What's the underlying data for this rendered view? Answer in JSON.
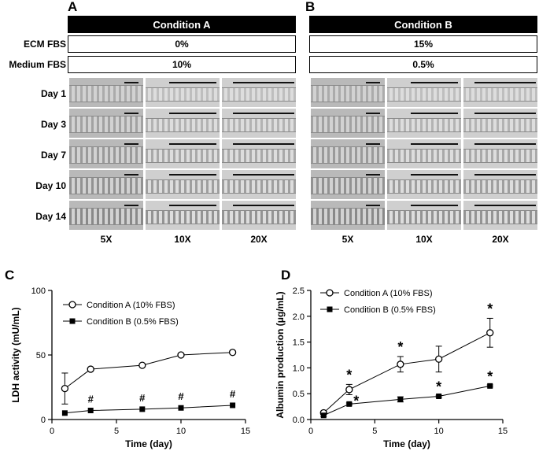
{
  "panels": {
    "A": "A",
    "B": "B",
    "C": "C",
    "D": "D"
  },
  "conditionA": {
    "title": "Condition A",
    "ecm_fbs": "0%",
    "medium_fbs": "10%"
  },
  "conditionB": {
    "title": "Condition B",
    "ecm_fbs": "15%",
    "medium_fbs": "0.5%"
  },
  "row_labels": {
    "ecm": "ECM FBS",
    "medium": "Medium FBS"
  },
  "days": [
    "Day 1",
    "Day 3",
    "Day 7",
    "Day 10",
    "Day 14"
  ],
  "magnifications": [
    "5X",
    "10X",
    "20X"
  ],
  "chart_data": [
    {
      "panel": "C",
      "type": "line",
      "xlabel": "Time (day)",
      "ylabel": "LDH activity (mU/mL)",
      "xlim": [
        0,
        15
      ],
      "ylim": [
        0,
        100
      ],
      "xticks": [
        0,
        5,
        10,
        15
      ],
      "yticks": [
        0,
        50,
        100
      ],
      "x": [
        1,
        3,
        7,
        10,
        14
      ],
      "series": [
        {
          "name": "Condition A (10% FBS)",
          "marker": "open-circle",
          "values": [
            24,
            39,
            42,
            50,
            52
          ],
          "err": [
            12,
            0,
            0,
            0,
            0
          ],
          "annotations": [
            "",
            "",
            "",
            "",
            ""
          ]
        },
        {
          "name": "Condition B (0.5% FBS)",
          "marker": "filled-square",
          "values": [
            5,
            7,
            8,
            9,
            11
          ],
          "err": [
            0,
            0,
            0,
            0,
            0
          ],
          "annotations": [
            "",
            "#",
            "#",
            "#",
            "#"
          ]
        }
      ]
    },
    {
      "panel": "D",
      "type": "line",
      "xlabel": "Time (day)",
      "ylabel": "Albumin production (μg/mL)",
      "xlim": [
        0,
        15
      ],
      "ylim": [
        0,
        2.5
      ],
      "xticks": [
        0,
        5,
        10,
        15
      ],
      "yticks": [
        0.0,
        0.5,
        1.0,
        1.5,
        2.0,
        2.5
      ],
      "x": [
        1,
        3,
        7,
        10,
        14
      ],
      "series": [
        {
          "name": "Condition A (10% FBS)",
          "marker": "open-circle",
          "values": [
            0.13,
            0.58,
            1.07,
            1.17,
            1.68
          ],
          "err": [
            0.03,
            0.1,
            0.15,
            0.25,
            0.28
          ],
          "annotations": [
            "",
            "*",
            "*",
            "",
            "*"
          ]
        },
        {
          "name": "Condition B (0.5% FBS)",
          "marker": "filled-square",
          "values": [
            0.08,
            0.3,
            0.39,
            0.45,
            0.65
          ],
          "err": [
            0.02,
            0.02,
            0.05,
            0.02,
            0.02
          ],
          "annotations": [
            "",
            "*",
            "",
            "*",
            "*"
          ]
        }
      ]
    }
  ]
}
